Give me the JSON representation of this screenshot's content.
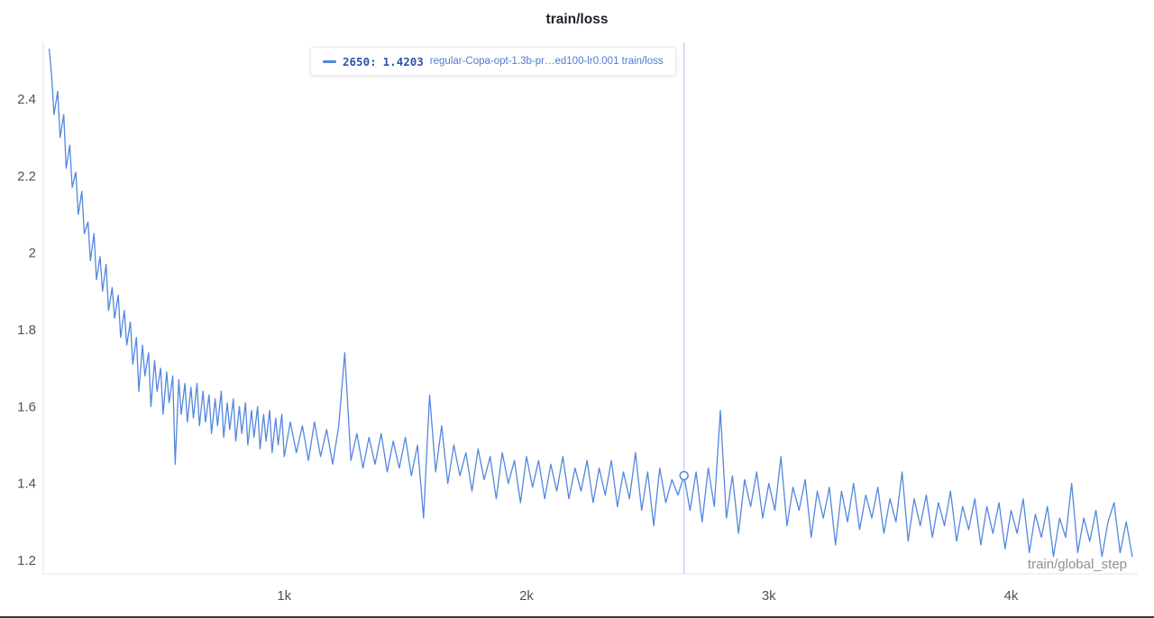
{
  "title": "train/loss",
  "tooltip": {
    "step_text": "2650:",
    "value": "1.4203",
    "run_label": "regular-Copa-opt-1.3b-pr…ed100-lr0.001 train/loss"
  },
  "axis": {
    "x_label": "train/global_step"
  },
  "colors": {
    "line": "#5387dd",
    "crosshair": "#b6cdf4",
    "axis": "#dde3ec",
    "tick_text": "#4c5260",
    "hover_dot_fill": "#ffffff"
  },
  "chart_data": {
    "type": "line",
    "title": "train/loss",
    "xlabel": "train/global_step",
    "ylabel": "",
    "xlim": [
      0,
      4600
    ],
    "ylim": [
      1.15,
      2.55
    ],
    "grid": false,
    "legend_position": "none",
    "y_ticks": [
      {
        "value": 2.4,
        "label": "2.4"
      },
      {
        "value": 2.2,
        "label": "2.2"
      },
      {
        "value": 2.0,
        "label": "2"
      },
      {
        "value": 1.8,
        "label": "1.8"
      },
      {
        "value": 1.6,
        "label": "1.6"
      },
      {
        "value": 1.4,
        "label": "1.4"
      },
      {
        "value": 1.2,
        "label": "1.2"
      }
    ],
    "x_ticks": [
      {
        "step": 1000,
        "label": "1k"
      },
      {
        "step": 2000,
        "label": "2k"
      },
      {
        "step": 3000,
        "label": "3k"
      },
      {
        "step": 4000,
        "label": "4k"
      }
    ],
    "hover": {
      "step": 2650,
      "value": 1.4203
    },
    "series": [
      {
        "name": "regular-Copa-opt-1.3b-pr…ed100-lr0.001 train/loss",
        "color": "#5387dd",
        "points": [
          [
            30,
            2.53
          ],
          [
            40,
            2.46
          ],
          [
            50,
            2.36
          ],
          [
            65,
            2.42
          ],
          [
            75,
            2.3
          ],
          [
            90,
            2.36
          ],
          [
            100,
            2.22
          ],
          [
            115,
            2.28
          ],
          [
            125,
            2.17
          ],
          [
            140,
            2.21
          ],
          [
            150,
            2.1
          ],
          [
            165,
            2.16
          ],
          [
            175,
            2.05
          ],
          [
            190,
            2.08
          ],
          [
            200,
            1.98
          ],
          [
            215,
            2.05
          ],
          [
            225,
            1.93
          ],
          [
            240,
            1.99
          ],
          [
            250,
            1.9
          ],
          [
            265,
            1.97
          ],
          [
            275,
            1.85
          ],
          [
            290,
            1.91
          ],
          [
            300,
            1.83
          ],
          [
            315,
            1.89
          ],
          [
            325,
            1.78
          ],
          [
            340,
            1.85
          ],
          [
            350,
            1.76
          ],
          [
            365,
            1.82
          ],
          [
            375,
            1.71
          ],
          [
            390,
            1.78
          ],
          [
            400,
            1.64
          ],
          [
            415,
            1.76
          ],
          [
            425,
            1.68
          ],
          [
            440,
            1.74
          ],
          [
            450,
            1.6
          ],
          [
            465,
            1.72
          ],
          [
            475,
            1.64
          ],
          [
            490,
            1.7
          ],
          [
            500,
            1.58
          ],
          [
            515,
            1.69
          ],
          [
            525,
            1.61
          ],
          [
            540,
            1.68
          ],
          [
            550,
            1.45
          ],
          [
            565,
            1.67
          ],
          [
            575,
            1.58
          ],
          [
            590,
            1.66
          ],
          [
            600,
            1.56
          ],
          [
            615,
            1.65
          ],
          [
            625,
            1.57
          ],
          [
            640,
            1.66
          ],
          [
            650,
            1.55
          ],
          [
            665,
            1.64
          ],
          [
            675,
            1.56
          ],
          [
            690,
            1.63
          ],
          [
            700,
            1.53
          ],
          [
            715,
            1.62
          ],
          [
            725,
            1.55
          ],
          [
            740,
            1.64
          ],
          [
            750,
            1.52
          ],
          [
            765,
            1.61
          ],
          [
            775,
            1.54
          ],
          [
            790,
            1.62
          ],
          [
            800,
            1.51
          ],
          [
            815,
            1.6
          ],
          [
            825,
            1.53
          ],
          [
            840,
            1.61
          ],
          [
            850,
            1.5
          ],
          [
            865,
            1.59
          ],
          [
            875,
            1.52
          ],
          [
            890,
            1.6
          ],
          [
            900,
            1.49
          ],
          [
            915,
            1.58
          ],
          [
            925,
            1.51
          ],
          [
            940,
            1.59
          ],
          [
            950,
            1.48
          ],
          [
            965,
            1.57
          ],
          [
            975,
            1.5
          ],
          [
            990,
            1.58
          ],
          [
            1000,
            1.47
          ],
          [
            1025,
            1.56
          ],
          [
            1050,
            1.48
          ],
          [
            1075,
            1.55
          ],
          [
            1100,
            1.46
          ],
          [
            1125,
            1.56
          ],
          [
            1150,
            1.47
          ],
          [
            1175,
            1.54
          ],
          [
            1200,
            1.45
          ],
          [
            1225,
            1.55
          ],
          [
            1250,
            1.74
          ],
          [
            1275,
            1.46
          ],
          [
            1300,
            1.53
          ],
          [
            1325,
            1.44
          ],
          [
            1350,
            1.52
          ],
          [
            1375,
            1.45
          ],
          [
            1400,
            1.53
          ],
          [
            1425,
            1.43
          ],
          [
            1450,
            1.51
          ],
          [
            1475,
            1.44
          ],
          [
            1500,
            1.52
          ],
          [
            1525,
            1.42
          ],
          [
            1550,
            1.5
          ],
          [
            1575,
            1.31
          ],
          [
            1600,
            1.63
          ],
          [
            1625,
            1.43
          ],
          [
            1650,
            1.55
          ],
          [
            1675,
            1.4
          ],
          [
            1700,
            1.5
          ],
          [
            1725,
            1.42
          ],
          [
            1750,
            1.48
          ],
          [
            1775,
            1.38
          ],
          [
            1800,
            1.49
          ],
          [
            1825,
            1.41
          ],
          [
            1850,
            1.47
          ],
          [
            1875,
            1.36
          ],
          [
            1900,
            1.48
          ],
          [
            1925,
            1.4
          ],
          [
            1950,
            1.46
          ],
          [
            1975,
            1.35
          ],
          [
            2000,
            1.47
          ],
          [
            2025,
            1.39
          ],
          [
            2050,
            1.46
          ],
          [
            2075,
            1.36
          ],
          [
            2100,
            1.45
          ],
          [
            2125,
            1.38
          ],
          [
            2150,
            1.47
          ],
          [
            2175,
            1.36
          ],
          [
            2200,
            1.44
          ],
          [
            2225,
            1.38
          ],
          [
            2250,
            1.46
          ],
          [
            2275,
            1.35
          ],
          [
            2300,
            1.44
          ],
          [
            2325,
            1.37
          ],
          [
            2350,
            1.46
          ],
          [
            2375,
            1.34
          ],
          [
            2400,
            1.43
          ],
          [
            2425,
            1.36
          ],
          [
            2450,
            1.48
          ],
          [
            2475,
            1.33
          ],
          [
            2500,
            1.43
          ],
          [
            2525,
            1.29
          ],
          [
            2550,
            1.44
          ],
          [
            2575,
            1.35
          ],
          [
            2600,
            1.41
          ],
          [
            2625,
            1.37
          ],
          [
            2650,
            1.4203
          ],
          [
            2675,
            1.33
          ],
          [
            2700,
            1.43
          ],
          [
            2725,
            1.3
          ],
          [
            2750,
            1.44
          ],
          [
            2775,
            1.34
          ],
          [
            2800,
            1.59
          ],
          [
            2825,
            1.31
          ],
          [
            2850,
            1.42
          ],
          [
            2875,
            1.27
          ],
          [
            2900,
            1.41
          ],
          [
            2925,
            1.34
          ],
          [
            2950,
            1.43
          ],
          [
            2975,
            1.31
          ],
          [
            3000,
            1.4
          ],
          [
            3025,
            1.33
          ],
          [
            3050,
            1.47
          ],
          [
            3075,
            1.29
          ],
          [
            3100,
            1.39
          ],
          [
            3125,
            1.33
          ],
          [
            3150,
            1.41
          ],
          [
            3175,
            1.26
          ],
          [
            3200,
            1.38
          ],
          [
            3225,
            1.31
          ],
          [
            3250,
            1.39
          ],
          [
            3275,
            1.24
          ],
          [
            3300,
            1.38
          ],
          [
            3325,
            1.3
          ],
          [
            3350,
            1.4
          ],
          [
            3375,
            1.28
          ],
          [
            3400,
            1.37
          ],
          [
            3425,
            1.31
          ],
          [
            3450,
            1.39
          ],
          [
            3475,
            1.27
          ],
          [
            3500,
            1.36
          ],
          [
            3525,
            1.3
          ],
          [
            3550,
            1.43
          ],
          [
            3575,
            1.25
          ],
          [
            3600,
            1.36
          ],
          [
            3625,
            1.29
          ],
          [
            3650,
            1.37
          ],
          [
            3675,
            1.26
          ],
          [
            3700,
            1.35
          ],
          [
            3725,
            1.29
          ],
          [
            3750,
            1.38
          ],
          [
            3775,
            1.25
          ],
          [
            3800,
            1.34
          ],
          [
            3825,
            1.28
          ],
          [
            3850,
            1.36
          ],
          [
            3875,
            1.24
          ],
          [
            3900,
            1.34
          ],
          [
            3925,
            1.27
          ],
          [
            3950,
            1.35
          ],
          [
            3975,
            1.23
          ],
          [
            4000,
            1.33
          ],
          [
            4025,
            1.27
          ],
          [
            4050,
            1.36
          ],
          [
            4075,
            1.22
          ],
          [
            4100,
            1.32
          ],
          [
            4125,
            1.26
          ],
          [
            4150,
            1.34
          ],
          [
            4175,
            1.21
          ],
          [
            4200,
            1.31
          ],
          [
            4225,
            1.26
          ],
          [
            4250,
            1.4
          ],
          [
            4275,
            1.22
          ],
          [
            4300,
            1.31
          ],
          [
            4325,
            1.25
          ],
          [
            4350,
            1.33
          ],
          [
            4375,
            1.21
          ],
          [
            4400,
            1.3
          ],
          [
            4425,
            1.35
          ],
          [
            4450,
            1.22
          ],
          [
            4475,
            1.3
          ],
          [
            4500,
            1.21
          ]
        ]
      }
    ]
  }
}
